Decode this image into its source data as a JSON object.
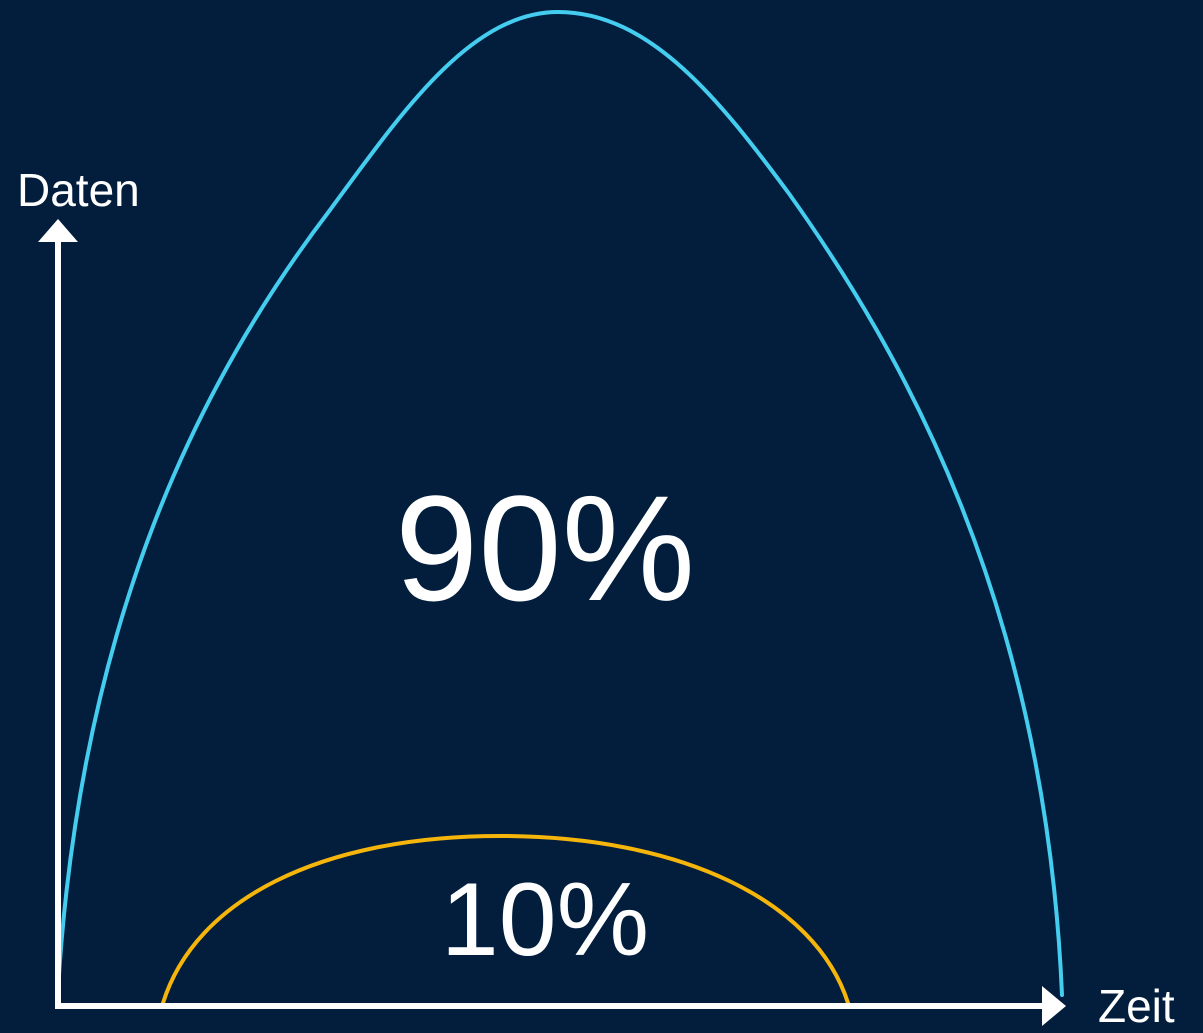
{
  "y_axis_label": "Daten",
  "x_axis_label": "Zeit",
  "large_curve_label": "90%",
  "small_curve_label": "10%",
  "colors": {
    "background": "#021e3c",
    "axis": "#ffffff",
    "large_curve": "#45cdf0",
    "small_curve": "#f5b50a",
    "text": "#ffffff"
  }
}
